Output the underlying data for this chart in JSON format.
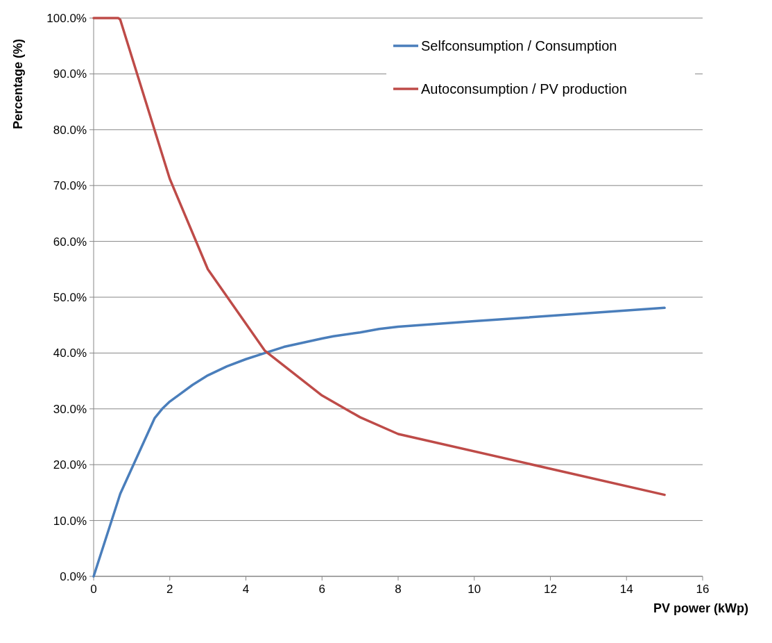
{
  "chart_data": {
    "type": "line",
    "xlabel": "PV power (kWp)",
    "ylabel": "Percentage (%)",
    "xlim": [
      0,
      16
    ],
    "xticks": [
      0,
      2,
      4,
      6,
      8,
      10,
      12,
      14,
      16
    ],
    "ylim": [
      0,
      100
    ],
    "yticks": [
      {
        "value": 0,
        "label": "0.0%"
      },
      {
        "value": 10,
        "label": "10.0%"
      },
      {
        "value": 20,
        "label": "20.0%"
      },
      {
        "value": 30,
        "label": "30.0%"
      },
      {
        "value": 40,
        "label": "40.0%"
      },
      {
        "value": 50,
        "label": "50.0%"
      },
      {
        "value": 60,
        "label": "60.0%"
      },
      {
        "value": 70,
        "label": "70.0%"
      },
      {
        "value": 80,
        "label": "80.0%"
      },
      {
        "value": 90,
        "label": "90.0%"
      },
      {
        "value": 100,
        "label": "100.0%"
      }
    ],
    "grid": "y",
    "legend": "top right",
    "line_style": "solid",
    "marker": "none",
    "series": [
      {
        "name": "Selfconsumption / Consumption",
        "color": "#4a7ebb",
        "x": [
          0,
          0.7,
          1.6,
          1.8,
          2,
          2.6,
          3,
          3.5,
          4,
          4.5,
          5,
          6,
          6.3,
          7,
          7.5,
          8,
          10,
          15
        ],
        "values": [
          0,
          14.8,
          28.3,
          30,
          31.3,
          34.3,
          36,
          37.6,
          38.9,
          40,
          41.1,
          42.6,
          43,
          43.7,
          44.3,
          44.7,
          45.7,
          48.1
        ]
      },
      {
        "name": "Autoconsumption / PV production",
        "color": "#be4b48",
        "x": [
          0,
          0.65,
          0.7,
          2,
          3,
          4.5,
          6,
          7,
          8,
          15
        ],
        "values": [
          100,
          100,
          99.7,
          71.2,
          55,
          40.4,
          32.4,
          28.5,
          25.5,
          14.6
        ]
      }
    ]
  }
}
